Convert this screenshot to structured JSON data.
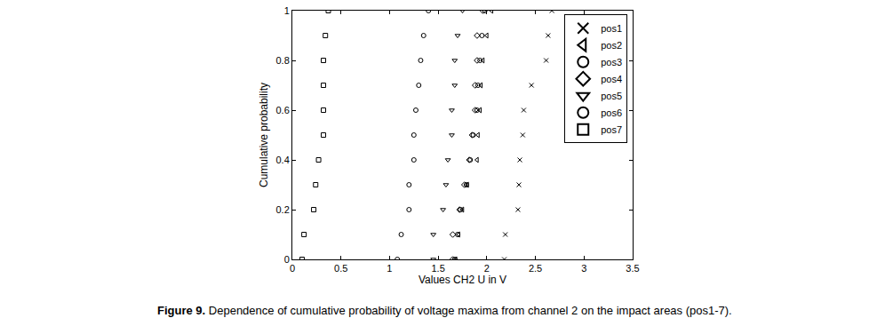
{
  "chart_data": {
    "type": "scatter",
    "xlabel": "Values CH2 U in V",
    "ylabel": "Cumulative probability",
    "caption": "Figure 9. Dependence of cumulative probability of voltage maxima from channel 2 on the impact areas (pos1-7).",
    "xlim": [
      0,
      3.5
    ],
    "xticks": [
      0,
      0.5,
      1,
      1.5,
      2,
      2.5,
      3,
      3.5
    ],
    "ylim": [
      0,
      1
    ],
    "yticks": [
      0,
      0.2,
      0.4,
      0.6,
      0.8,
      1
    ],
    "grid": false,
    "legend": "upper right",
    "series": [
      {
        "name": "pos1",
        "marker": "x",
        "color": "#000000",
        "x": [
          2.18,
          2.19,
          2.32,
          2.33,
          2.34,
          2.37,
          2.38,
          2.46,
          2.61,
          2.63,
          2.67
        ],
        "y": [
          0,
          0.1,
          0.2,
          0.3,
          0.4,
          0.5,
          0.6,
          0.7,
          0.8,
          0.9,
          1
        ]
      },
      {
        "name": "pos2",
        "marker": "triangle-left",
        "color": "#000000",
        "x": [
          1.68,
          1.71,
          1.75,
          1.8,
          1.9,
          1.91,
          1.93,
          1.94,
          1.96,
          2.0,
          2.05
        ],
        "y": [
          0,
          0.1,
          0.2,
          0.3,
          0.4,
          0.5,
          0.6,
          0.7,
          0.8,
          0.9,
          1
        ]
      },
      {
        "name": "pos3",
        "marker": "circle",
        "color": "#000000",
        "x": [
          1.67,
          1.7,
          1.73,
          1.79,
          1.83,
          1.86,
          1.9,
          1.91,
          1.93,
          1.95,
          1.98
        ],
        "y": [
          0,
          0.1,
          0.2,
          0.3,
          0.4,
          0.5,
          0.6,
          0.7,
          0.8,
          0.9,
          1
        ]
      },
      {
        "name": "pos4",
        "marker": "diamond",
        "color": "#000000",
        "x": [
          1.65,
          1.65,
          1.72,
          1.77,
          1.82,
          1.85,
          1.88,
          1.88,
          1.9,
          1.9,
          1.96
        ],
        "y": [
          0,
          0.1,
          0.2,
          0.3,
          0.4,
          0.5,
          0.6,
          0.7,
          0.8,
          0.9,
          1
        ]
      },
      {
        "name": "pos5",
        "marker": "triangle-down",
        "color": "#000000",
        "x": [
          1.45,
          1.45,
          1.55,
          1.58,
          1.6,
          1.64,
          1.64,
          1.67,
          1.67,
          1.7,
          1.75
        ],
        "y": [
          0,
          0.1,
          0.2,
          0.3,
          0.4,
          0.5,
          0.6,
          0.7,
          0.8,
          0.9,
          1
        ]
      },
      {
        "name": "pos6",
        "marker": "circle",
        "color": "#000000",
        "x": [
          1.08,
          1.12,
          1.2,
          1.2,
          1.25,
          1.25,
          1.27,
          1.3,
          1.32,
          1.35,
          1.4
        ],
        "y": [
          0,
          0.1,
          0.2,
          0.3,
          0.4,
          0.5,
          0.6,
          0.7,
          0.8,
          0.9,
          1
        ]
      },
      {
        "name": "pos7",
        "marker": "square",
        "color": "#000000",
        "x": [
          0.1,
          0.12,
          0.22,
          0.24,
          0.27,
          0.32,
          0.32,
          0.32,
          0.32,
          0.34,
          0.37
        ],
        "y": [
          0,
          0.1,
          0.2,
          0.3,
          0.4,
          0.5,
          0.6,
          0.7,
          0.8,
          0.9,
          1
        ]
      }
    ]
  }
}
